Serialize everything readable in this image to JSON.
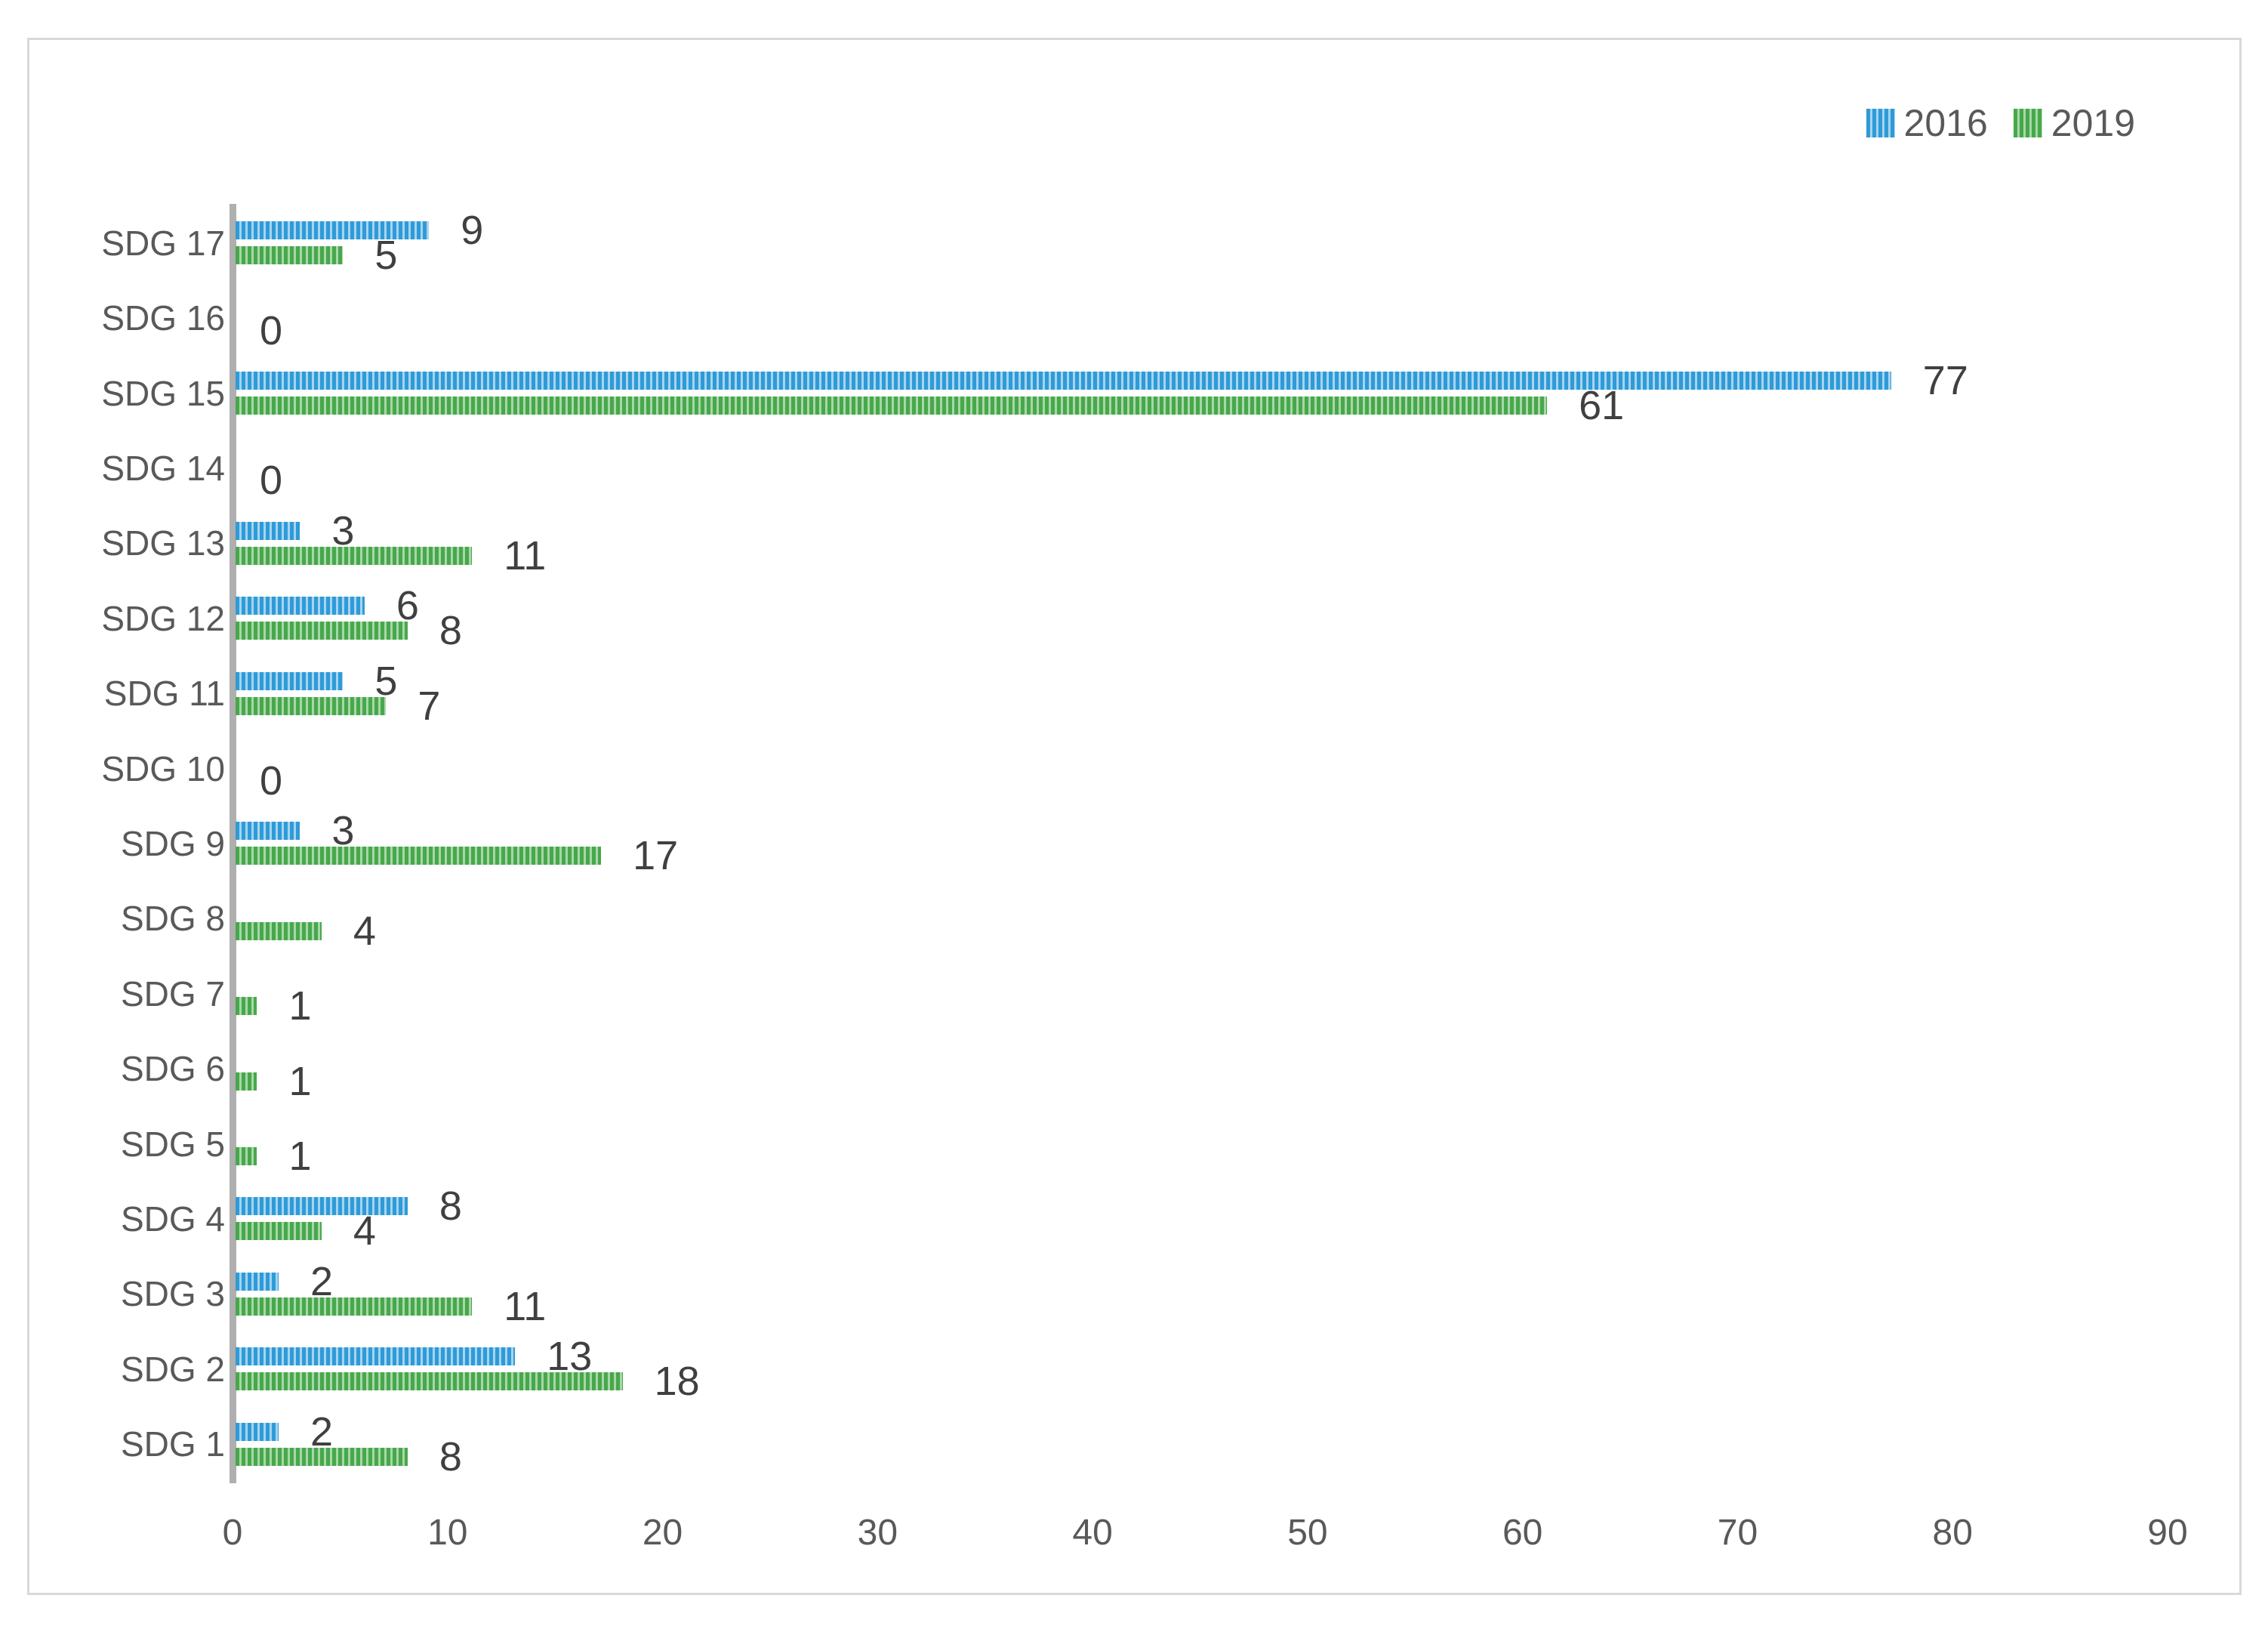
{
  "chart_data": {
    "type": "bar",
    "orientation": "horizontal",
    "title": "",
    "xlabel": "",
    "ylabel": "",
    "xlim": [
      0,
      90
    ],
    "x_ticks": [
      0,
      10,
      20,
      30,
      40,
      50,
      60,
      70,
      80,
      90
    ],
    "grid": false,
    "data_labels": true,
    "legend_position": "top-right",
    "categories_top_to_bottom": [
      "SDG 17",
      "SDG 16",
      "SDG 15",
      "SDG 14",
      "SDG 13",
      "SDG 12",
      "SDG 11",
      "SDG 10",
      "SDG 9",
      "SDG 8",
      "SDG 7",
      "SDG 6",
      "SDG 5",
      "SDG 4",
      "SDG 3",
      "SDG 2",
      "SDG 1"
    ],
    "series": [
      {
        "name": "2016",
        "color": "#2E9BD8",
        "pattern": "light-vertical-stripes",
        "values": [
          9,
          null,
          77,
          null,
          3,
          6,
          5,
          null,
          3,
          null,
          null,
          null,
          null,
          8,
          2,
          13,
          2
        ]
      },
      {
        "name": "2019",
        "color": "#47A84B",
        "pattern": "light-vertical-stripes",
        "values": [
          5,
          0,
          61,
          0,
          11,
          8,
          7,
          0,
          17,
          4,
          1,
          1,
          1,
          4,
          11,
          18,
          8
        ]
      }
    ]
  },
  "style": {
    "frame_border": "#D9D9D9",
    "axis_line": "#AFAFAF",
    "label_text": "#404040",
    "tick_text": "#595959",
    "blue_stripe_light": "#A6D4EF",
    "green_stripe_light": "#A8D7A9"
  }
}
